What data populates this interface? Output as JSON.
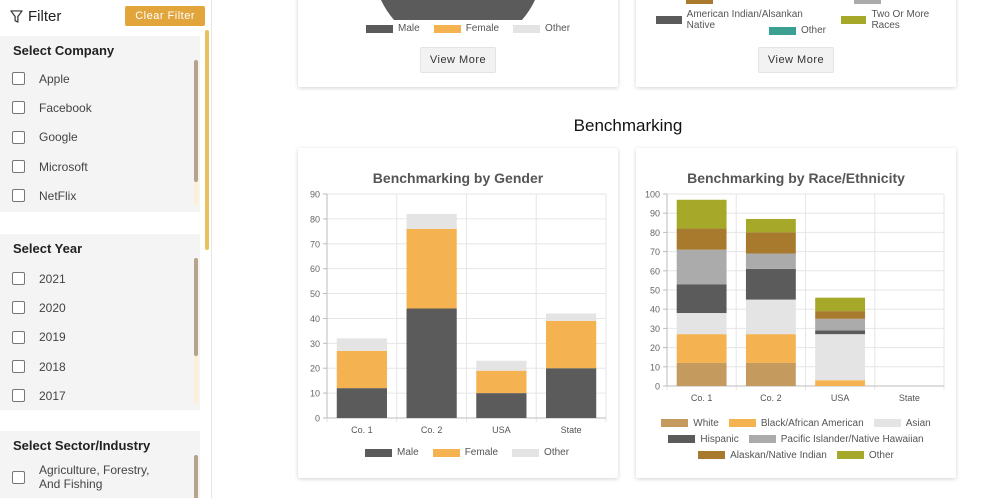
{
  "sidebar": {
    "title": "Filter",
    "clear_label": "Clear Filter",
    "groups": [
      {
        "title": "Select Company",
        "items": [
          "Apple",
          "Facebook",
          "Google",
          "Microsoft",
          "NetFlix"
        ]
      },
      {
        "title": "Select Year",
        "items": [
          "2021",
          "2020",
          "2019",
          "2018",
          "2017"
        ]
      },
      {
        "title": "Select Sector/Industry",
        "items": [
          "Agriculture, Forestry, And Fishing"
        ]
      }
    ]
  },
  "top": {
    "left_legend": [
      "Male",
      "Female",
      "Other"
    ],
    "right_legend": [
      "American Indian/Alsankan Native",
      "Two Or More Races",
      "Other"
    ],
    "view_more_label": "View More"
  },
  "section_title": "Benchmarking",
  "colors": {
    "male": "#5b5b5b",
    "female": "#f4b350",
    "other": "#e4e4e4",
    "white": "#c49a5e",
    "black": "#f4b350",
    "asian": "#e4e4e4",
    "hispanic": "#5b5b5b",
    "pacific": "#ababab",
    "alaskan": "#a77a2e",
    "race_other": "#a6a82a",
    "amer_indian": "#5b5b5b",
    "two_more": "#a6a82a",
    "top_other": "#3aa091",
    "accent": "#e1a53c"
  },
  "chart_data": [
    {
      "type": "bar",
      "stacked": true,
      "title": "Benchmarking by Gender",
      "categories": [
        "Co. 1",
        "Co. 2",
        "USA",
        "State"
      ],
      "ylim": [
        0,
        90
      ],
      "yticks": [
        0,
        10,
        20,
        30,
        40,
        50,
        60,
        70,
        80,
        90
      ],
      "series": [
        {
          "name": "Male",
          "values": [
            12,
            44,
            10,
            20
          ]
        },
        {
          "name": "Female",
          "values": [
            15,
            32,
            9,
            19
          ]
        },
        {
          "name": "Other",
          "values": [
            5,
            6,
            4,
            3
          ]
        }
      ]
    },
    {
      "type": "bar",
      "stacked": true,
      "title": "Benchmarking by Race/Ethnicity",
      "categories": [
        "Co. 1",
        "Co. 2",
        "USA",
        "State"
      ],
      "ylim": [
        0,
        100
      ],
      "yticks": [
        0,
        10,
        20,
        30,
        40,
        50,
        60,
        70,
        80,
        90,
        100
      ],
      "series": [
        {
          "name": "White",
          "values": [
            12,
            12,
            0,
            0
          ]
        },
        {
          "name": "Black/African American",
          "values": [
            15,
            15,
            3,
            0
          ]
        },
        {
          "name": "Asian",
          "values": [
            11,
            18,
            24,
            0
          ]
        },
        {
          "name": "Hispanic",
          "values": [
            15,
            16,
            2,
            0
          ]
        },
        {
          "name": "Pacific Islander/Native Hawaiian",
          "values": [
            18,
            8,
            6,
            0
          ]
        },
        {
          "name": "Alaskan/Native Indian",
          "values": [
            11,
            11,
            4,
            0
          ]
        },
        {
          "name": "Other",
          "values": [
            15,
            7,
            7,
            0
          ]
        }
      ]
    }
  ]
}
